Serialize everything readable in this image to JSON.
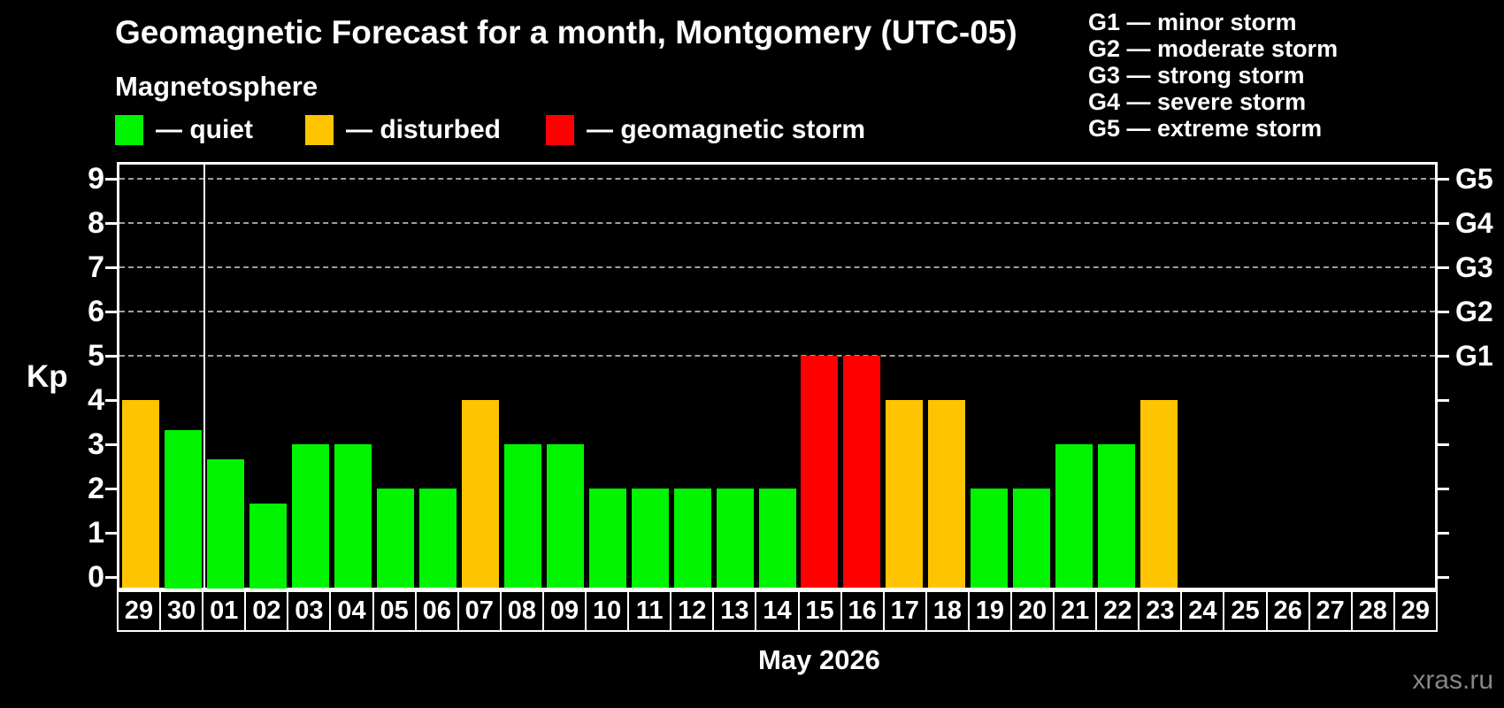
{
  "header": {
    "title": "Geomagnetic Forecast for a month, Montgomery (UTC-05)",
    "subtitle": "Magnetosphere"
  },
  "legend": {
    "items": [
      {
        "key": "quiet",
        "label": "— quiet",
        "color": "#00f400",
        "x": 0
      },
      {
        "key": "disturbed",
        "label": "— disturbed",
        "color": "#ffc400",
        "x": 215
      },
      {
        "key": "storm",
        "label": "— geomagnetic storm",
        "color": "#ff0000",
        "x": 487
      }
    ]
  },
  "g_scale_legend": {
    "lines": [
      "G1 — minor storm",
      "G2 — moderate storm",
      "G3 — strong storm",
      "G4 — severe storm",
      "G5 — extreme storm"
    ]
  },
  "watermark": "xras.ru",
  "chart_data": {
    "type": "bar",
    "title": "Geomagnetic Forecast for a month, Montgomery (UTC-05)",
    "xlabel": "May 2026",
    "ylabel": "Kp",
    "ylim": [
      0,
      9
    ],
    "y_ticks": [
      0,
      1,
      2,
      3,
      4,
      5,
      6,
      7,
      8,
      9
    ],
    "gridlines_at_kp": [
      5,
      6,
      7,
      8,
      9
    ],
    "grid_style": "dashed",
    "right_axis_labels": [
      {
        "kp": 5,
        "label": "G1"
      },
      {
        "kp": 6,
        "label": "G2"
      },
      {
        "kp": 7,
        "label": "G3"
      },
      {
        "kp": 8,
        "label": "G4"
      },
      {
        "kp": 9,
        "label": "G5"
      }
    ],
    "condition_colors": {
      "quiet": "#00f400",
      "disturbed": "#ffc400",
      "storm": "#ff0000"
    },
    "month_separator_after_index": 1,
    "categories": [
      "29",
      "30",
      "01",
      "02",
      "03",
      "04",
      "05",
      "06",
      "07",
      "08",
      "09",
      "10",
      "11",
      "12",
      "13",
      "14",
      "15",
      "16",
      "17",
      "18",
      "19",
      "20",
      "21",
      "22",
      "23",
      "24",
      "25",
      "26",
      "27",
      "28",
      "29"
    ],
    "days": [
      {
        "label": "29",
        "kp": 4.0,
        "condition": "disturbed"
      },
      {
        "label": "30",
        "kp": 3.33,
        "condition": "quiet"
      },
      {
        "label": "01",
        "kp": 2.67,
        "condition": "quiet"
      },
      {
        "label": "02",
        "kp": 1.67,
        "condition": "quiet"
      },
      {
        "label": "03",
        "kp": 3.0,
        "condition": "quiet"
      },
      {
        "label": "04",
        "kp": 3.0,
        "condition": "quiet"
      },
      {
        "label": "05",
        "kp": 2.0,
        "condition": "quiet"
      },
      {
        "label": "06",
        "kp": 2.0,
        "condition": "quiet"
      },
      {
        "label": "07",
        "kp": 4.0,
        "condition": "disturbed"
      },
      {
        "label": "08",
        "kp": 3.0,
        "condition": "quiet"
      },
      {
        "label": "09",
        "kp": 3.0,
        "condition": "quiet"
      },
      {
        "label": "10",
        "kp": 2.0,
        "condition": "quiet"
      },
      {
        "label": "11",
        "kp": 2.0,
        "condition": "quiet"
      },
      {
        "label": "12",
        "kp": 2.0,
        "condition": "quiet"
      },
      {
        "label": "13",
        "kp": 2.0,
        "condition": "quiet"
      },
      {
        "label": "14",
        "kp": 2.0,
        "condition": "quiet"
      },
      {
        "label": "15",
        "kp": 5.0,
        "condition": "storm"
      },
      {
        "label": "16",
        "kp": 5.0,
        "condition": "storm"
      },
      {
        "label": "17",
        "kp": 4.0,
        "condition": "disturbed"
      },
      {
        "label": "18",
        "kp": 4.0,
        "condition": "disturbed"
      },
      {
        "label": "19",
        "kp": 2.0,
        "condition": "quiet"
      },
      {
        "label": "20",
        "kp": 2.0,
        "condition": "quiet"
      },
      {
        "label": "21",
        "kp": 3.0,
        "condition": "quiet"
      },
      {
        "label": "22",
        "kp": 3.0,
        "condition": "quiet"
      },
      {
        "label": "23",
        "kp": 4.0,
        "condition": "disturbed"
      },
      {
        "label": "24",
        "kp": null,
        "condition": null
      },
      {
        "label": "25",
        "kp": null,
        "condition": null
      },
      {
        "label": "26",
        "kp": null,
        "condition": null
      },
      {
        "label": "27",
        "kp": null,
        "condition": null
      },
      {
        "label": "28",
        "kp": null,
        "condition": null
      },
      {
        "label": "29",
        "kp": null,
        "condition": null
      }
    ]
  }
}
